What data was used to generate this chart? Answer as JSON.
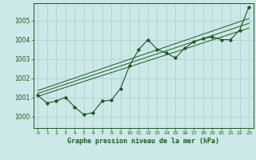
{
  "title": "Graphe pression niveau de la mer (hPa)",
  "background_color": "#cce8e8",
  "grid_color": "#aacece",
  "line_color": "#1a5c1a",
  "xlim": [
    -0.5,
    23.5
  ],
  "ylim": [
    999.4,
    1005.9
  ],
  "yticks": [
    1000,
    1001,
    1002,
    1003,
    1004,
    1005
  ],
  "xticks": [
    0,
    1,
    2,
    3,
    4,
    5,
    6,
    7,
    8,
    9,
    10,
    11,
    12,
    13,
    14,
    15,
    16,
    17,
    18,
    19,
    20,
    21,
    22,
    23
  ],
  "main_series": [
    [
      0,
      1001.1
    ],
    [
      1,
      1000.7
    ],
    [
      2,
      1000.8
    ],
    [
      3,
      1001.0
    ],
    [
      4,
      1000.5
    ],
    [
      5,
      1000.1
    ],
    [
      6,
      1000.2
    ],
    [
      7,
      1000.8
    ],
    [
      8,
      1000.85
    ],
    [
      9,
      1001.45
    ],
    [
      10,
      1002.65
    ],
    [
      11,
      1003.5
    ],
    [
      12,
      1004.0
    ],
    [
      13,
      1003.5
    ],
    [
      14,
      1003.3
    ],
    [
      15,
      1003.05
    ],
    [
      16,
      1003.55
    ],
    [
      17,
      1003.9
    ],
    [
      18,
      1004.05
    ],
    [
      19,
      1004.15
    ],
    [
      20,
      1004.0
    ],
    [
      21,
      1004.0
    ],
    [
      22,
      1004.5
    ],
    [
      23,
      1005.7
    ]
  ],
  "trend_line1": [
    [
      0,
      1001.05
    ],
    [
      23,
      1004.6
    ]
  ],
  "trend_line2": [
    [
      0,
      1001.2
    ],
    [
      23,
      1004.85
    ]
  ],
  "trend_line3": [
    [
      0,
      1001.35
    ],
    [
      23,
      1005.1
    ]
  ]
}
